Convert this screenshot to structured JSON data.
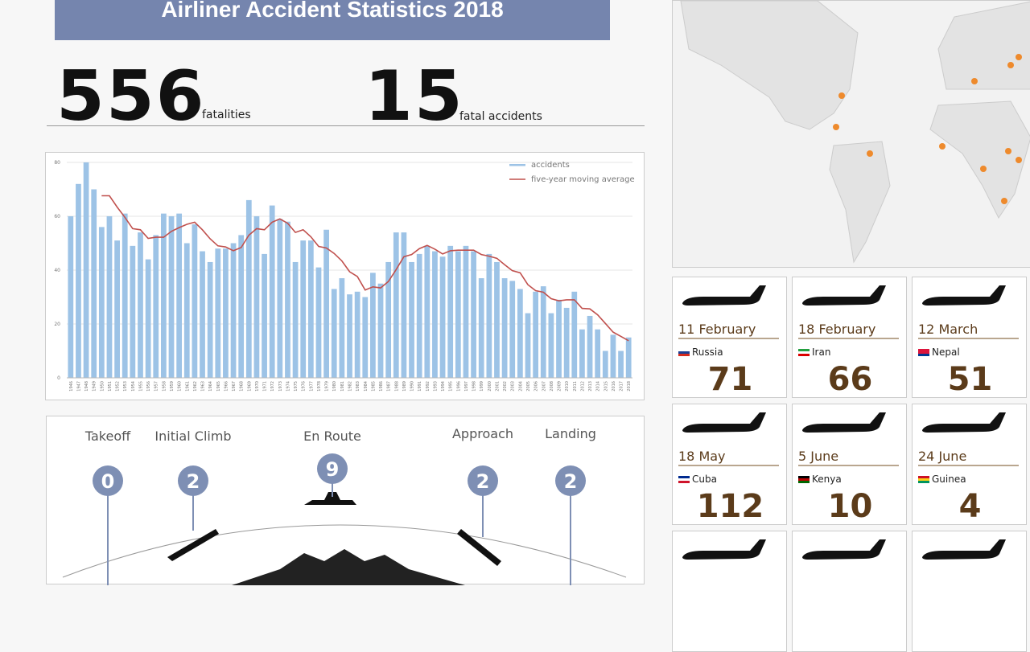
{
  "header": {
    "title": "Airliner Accident Statistics  2018"
  },
  "stats": [
    {
      "value": "556",
      "label": "fatalities"
    },
    {
      "value": "15",
      "label": "fatal accidents"
    }
  ],
  "chart_data": {
    "type": "bar",
    "categories": [
      "1946",
      "1947",
      "1948",
      "1949",
      "1950",
      "1951",
      "1952",
      "1953",
      "1954",
      "1955",
      "1956",
      "1957",
      "1958",
      "1959",
      "1960",
      "1961",
      "1962",
      "1963",
      "1964",
      "1965",
      "1966",
      "1967",
      "1968",
      "1969",
      "1970",
      "1971",
      "1972",
      "1973",
      "1974",
      "1975",
      "1976",
      "1977",
      "1978",
      "1979",
      "1980",
      "1981",
      "1982",
      "1983",
      "1984",
      "1985",
      "1986",
      "1987",
      "1988",
      "1989",
      "1990",
      "1991",
      "1992",
      "1993",
      "1994",
      "1995",
      "1996",
      "1997",
      "1998",
      "1999",
      "2000",
      "2001",
      "2002",
      "2003",
      "2004",
      "2005",
      "2006",
      "2007",
      "2008",
      "2009",
      "2010",
      "2011",
      "2012",
      "2013",
      "2014",
      "2015",
      "2016",
      "2017",
      "2018"
    ],
    "series": [
      {
        "name": "accidents",
        "type": "bar",
        "color": "#9dc3e6",
        "values": [
          60,
          72,
          80,
          70,
          56,
          60,
          51,
          61,
          49,
          54,
          44,
          53,
          61,
          60,
          61,
          50,
          57,
          47,
          43,
          48,
          48,
          50,
          53,
          66,
          60,
          46,
          64,
          59,
          58,
          43,
          51,
          51,
          41,
          55,
          33,
          37,
          31,
          32,
          30,
          39,
          35,
          43,
          54,
          54,
          43,
          46,
          49,
          47,
          45,
          49,
          47,
          49,
          47,
          37,
          46,
          43,
          37,
          36,
          33,
          24,
          32,
          34,
          24,
          29,
          26,
          32,
          18,
          23,
          18,
          10,
          16,
          10,
          15
        ]
      },
      {
        "name": "five-year moving average",
        "type": "line",
        "color": "#c0504d",
        "values": [
          null,
          null,
          null,
          null,
          67.6,
          67.6,
          63.4,
          59.6,
          55.4,
          55,
          51.8,
          52.2,
          52.2,
          54.4,
          55.8,
          57,
          57.8,
          55,
          51.6,
          49,
          48.6,
          47.2,
          48.4,
          53,
          55.4,
          55,
          57.8,
          59,
          57.4,
          54,
          55,
          52.4,
          48.8,
          48.2,
          46.2,
          43.4,
          39.4,
          37.6,
          32.6,
          33.8,
          33.4,
          35.8,
          40.2,
          45,
          45.8,
          48,
          49.2,
          47.8,
          46,
          47.2,
          47.4,
          47.4,
          47.4,
          45.8,
          45.2,
          44.4,
          42,
          39.8,
          39,
          34.6,
          32.4,
          31.8,
          29.4,
          28.6,
          29,
          29,
          25.8,
          25.6,
          23.4,
          20.2,
          17,
          15.4,
          13.8
        ]
      }
    ],
    "ylim": [
      0,
      80
    ],
    "yticks": [
      0,
      20,
      40,
      60,
      80
    ],
    "grid": true,
    "legend": "upper right"
  },
  "phases": [
    {
      "label": "Takeoff",
      "count": "0"
    },
    {
      "label": "Initial Climb",
      "count": "2"
    },
    {
      "label": "En Route",
      "count": "9"
    },
    {
      "label": "Approach",
      "count": "2"
    },
    {
      "label": "Landing",
      "count": "2"
    }
  ],
  "incidents": [
    {
      "date": "11 February",
      "country": "Russia",
      "fatalities": "71"
    },
    {
      "date": "18 February",
      "country": "Iran",
      "fatalities": "66"
    },
    {
      "date": "12 March",
      "country": "Nepal",
      "fatalities": "51"
    },
    {
      "date": "18 May",
      "country": "Cuba",
      "fatalities": "112"
    },
    {
      "date": "5 June",
      "country": "Kenya",
      "fatalities": "10"
    },
    {
      "date": "24 June",
      "country": "Guinea",
      "fatalities": "4"
    }
  ]
}
